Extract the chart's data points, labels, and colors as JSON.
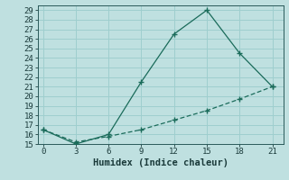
{
  "xlabel": "Humidex (Indice chaleur)",
  "line1_x": [
    0,
    3,
    6,
    9,
    12,
    15,
    18,
    21
  ],
  "line1_y": [
    16.5,
    15.0,
    16.0,
    21.5,
    26.5,
    29.0,
    24.5,
    21.0
  ],
  "line2_x": [
    0,
    3,
    6,
    9,
    12,
    15,
    18,
    21
  ],
  "line2_y": [
    16.5,
    15.2,
    15.8,
    16.5,
    17.5,
    18.5,
    19.7,
    21.0
  ],
  "line_color": "#1a6b5a",
  "bg_color": "#bfe0e0",
  "grid_color": "#9ecece",
  "xlim": [
    -0.5,
    22
  ],
  "ylim": [
    15,
    29.5
  ],
  "xticks": [
    0,
    3,
    6,
    9,
    12,
    15,
    18,
    21
  ],
  "yticks": [
    15,
    16,
    17,
    18,
    19,
    20,
    21,
    22,
    23,
    24,
    25,
    26,
    27,
    28,
    29
  ],
  "xlabel_fontsize": 7.5,
  "tick_fontsize": 6.5
}
